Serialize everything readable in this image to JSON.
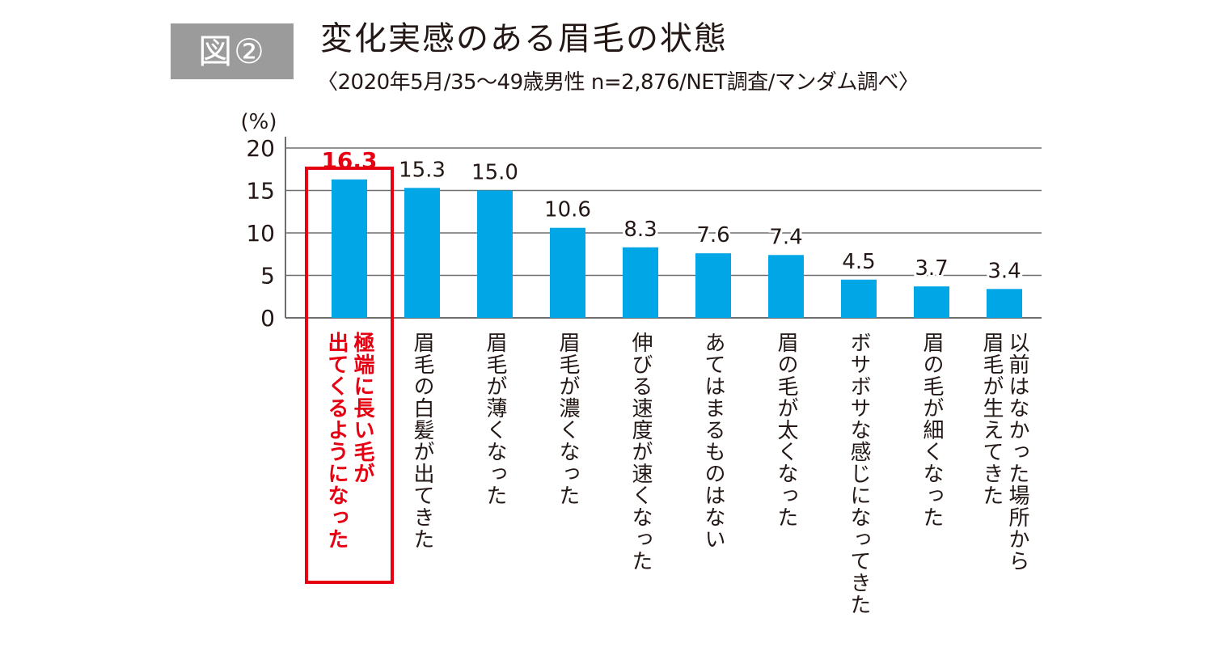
{
  "figure": {
    "badge": "図②",
    "title": "変化実感のある眉毛の状態",
    "subtitle": "〈2020年5月/35〜49歳男性 n=2,876/NET調査/マンダム調べ〉"
  },
  "chart_data": {
    "type": "bar",
    "ylabel": "(%)",
    "ylim": [
      0,
      20
    ],
    "yticks": [
      0,
      5,
      10,
      15,
      20
    ],
    "grid": true,
    "categories": [
      "極端に長い毛が出てくるようになった",
      "眉毛の白髪が出てきた",
      "眉毛が薄くなった",
      "眉毛が濃くなった",
      "伸びる速度が速くなった",
      "あてはまるものはない",
      "眉の毛が太くなった",
      "ボサボサな感じになってきた",
      "眉の毛が細くなった",
      "以前はなかった場所から眉毛が生えてきた"
    ],
    "category_lines": [
      [
        "極端に長い毛が",
        "出てくるようになった"
      ],
      [
        "眉毛の白髪が出てきた"
      ],
      [
        "眉毛が薄くなった"
      ],
      [
        "眉毛が濃くなった"
      ],
      [
        "伸びる速度が速くなった"
      ],
      [
        "あてはまるものはない"
      ],
      [
        "眉の毛が太くなった"
      ],
      [
        "ボサボサな感じになってきた"
      ],
      [
        "眉の毛が細くなった"
      ],
      [
        "以前はなかった場所から",
        "眉毛が生えてきた"
      ]
    ],
    "values": [
      16.3,
      15.3,
      15.0,
      10.6,
      8.3,
      7.6,
      7.4,
      4.5,
      3.7,
      3.4
    ],
    "value_labels": [
      "16.3",
      "15.3",
      "15.0",
      "10.6",
      "8.3",
      "7.6",
      "7.4",
      "4.5",
      "3.7",
      "3.4"
    ],
    "highlight_index": 0,
    "colors": {
      "bar": "#00a6e6",
      "highlight": "#e60012",
      "grid": "#6e6e6e",
      "text": "#231815"
    }
  }
}
